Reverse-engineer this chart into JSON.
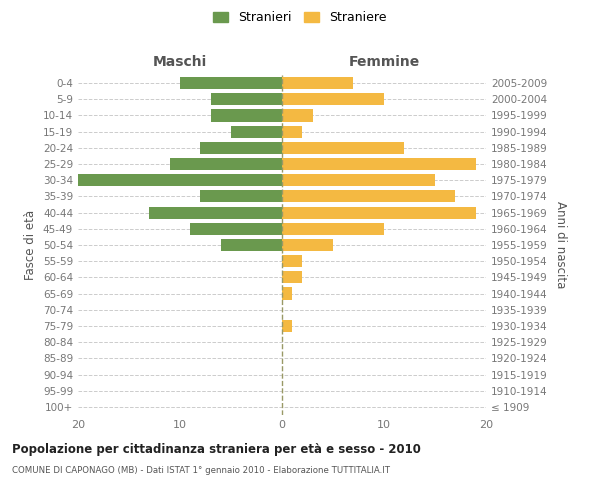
{
  "age_groups": [
    "100+",
    "95-99",
    "90-94",
    "85-89",
    "80-84",
    "75-79",
    "70-74",
    "65-69",
    "60-64",
    "55-59",
    "50-54",
    "45-49",
    "40-44",
    "35-39",
    "30-34",
    "25-29",
    "20-24",
    "15-19",
    "10-14",
    "5-9",
    "0-4"
  ],
  "birth_years": [
    "≤ 1909",
    "1910-1914",
    "1915-1919",
    "1920-1924",
    "1925-1929",
    "1930-1934",
    "1935-1939",
    "1940-1944",
    "1945-1949",
    "1950-1954",
    "1955-1959",
    "1960-1964",
    "1965-1969",
    "1970-1974",
    "1975-1979",
    "1980-1984",
    "1985-1989",
    "1990-1994",
    "1995-1999",
    "2000-2004",
    "2005-2009"
  ],
  "maschi": [
    0,
    0,
    0,
    0,
    0,
    0,
    0,
    0,
    0,
    0,
    6,
    9,
    13,
    8,
    20,
    11,
    8,
    5,
    7,
    7,
    10
  ],
  "femmine": [
    0,
    0,
    0,
    0,
    0,
    1,
    0,
    1,
    2,
    2,
    5,
    10,
    19,
    17,
    15,
    19,
    12,
    2,
    3,
    10,
    7
  ],
  "color_maschi": "#6a994e",
  "color_femmine": "#f4b942",
  "title": "Popolazione per cittadinanza straniera per età e sesso - 2010",
  "subtitle": "COMUNE DI CAPONAGO (MB) - Dati ISTAT 1° gennaio 2010 - Elaborazione TUTTITALIA.IT",
  "xlabel_left": "Maschi",
  "xlabel_right": "Femmine",
  "ylabel_left": "Fasce di età",
  "ylabel_right": "Anni di nascita",
  "legend_maschi": "Stranieri",
  "legend_femmine": "Straniere",
  "xlim": 20,
  "background_color": "#ffffff"
}
